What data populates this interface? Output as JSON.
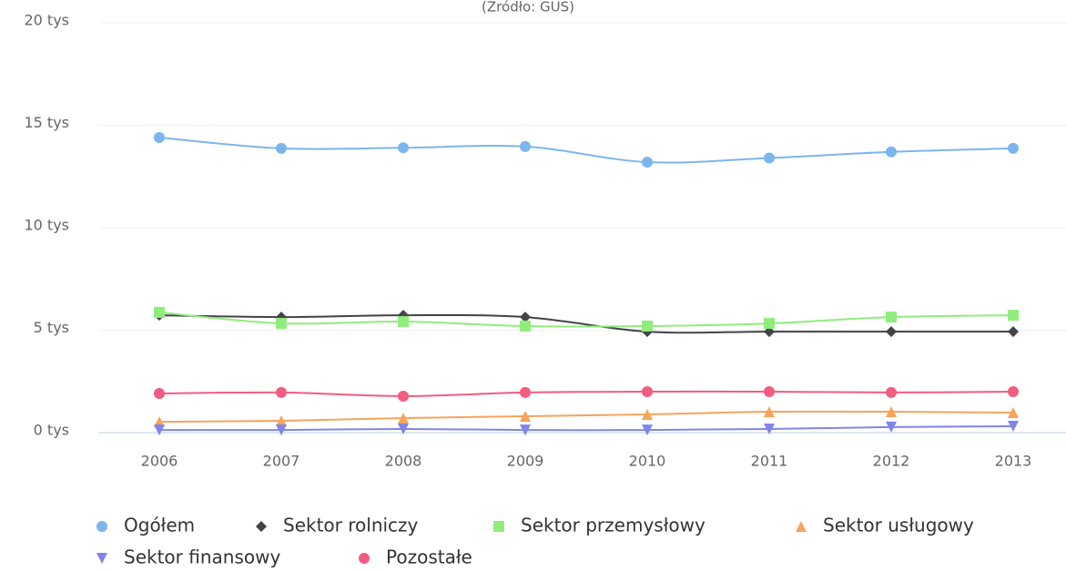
{
  "chart_data": {
    "type": "line",
    "subtitle": "(Źródło: GUS)",
    "categories": [
      "2006",
      "2007",
      "2008",
      "2009",
      "2010",
      "2011",
      "2012",
      "2013"
    ],
    "ylim": [
      0,
      20
    ],
    "yticks": [
      {
        "value": 0,
        "label": "0 tys"
      },
      {
        "value": 5,
        "label": "5 tys"
      },
      {
        "value": 10,
        "label": "10 tys"
      },
      {
        "value": 15,
        "label": "15 tys"
      },
      {
        "value": 20,
        "label": "20 tys"
      }
    ],
    "grid": true,
    "legend": "bottom",
    "series": [
      {
        "name": "Ogółem",
        "color": "#7cb5ec",
        "marker": "circle",
        "values": [
          14.4,
          13.87,
          13.9,
          13.96,
          13.2,
          13.4,
          13.7,
          13.87
        ]
      },
      {
        "name": "Sektor rolniczy",
        "color": "#434348",
        "marker": "diamond",
        "values": [
          5.73,
          5.64,
          5.73,
          5.64,
          4.93,
          4.93,
          4.93,
          4.93
        ]
      },
      {
        "name": "Sektor przemysłowy",
        "color": "#90ed7d",
        "marker": "square",
        "values": [
          5.87,
          5.33,
          5.42,
          5.2,
          5.2,
          5.33,
          5.64,
          5.73
        ]
      },
      {
        "name": "Sektor usługowy",
        "color": "#f7a35c",
        "marker": "triangle",
        "values": [
          0.53,
          0.58,
          0.71,
          0.8,
          0.89,
          1.02,
          1.02,
          0.98
        ]
      },
      {
        "name": "Sektor finansowy",
        "color": "#8085e9",
        "marker": "triangle-down",
        "values": [
          0.13,
          0.13,
          0.18,
          0.13,
          0.13,
          0.18,
          0.27,
          0.31
        ]
      },
      {
        "name": "Pozostałe",
        "color": "#f15c80",
        "marker": "circle",
        "values": [
          1.91,
          1.96,
          1.78,
          1.96,
          2.0,
          2.0,
          1.96,
          2.0
        ]
      }
    ]
  }
}
